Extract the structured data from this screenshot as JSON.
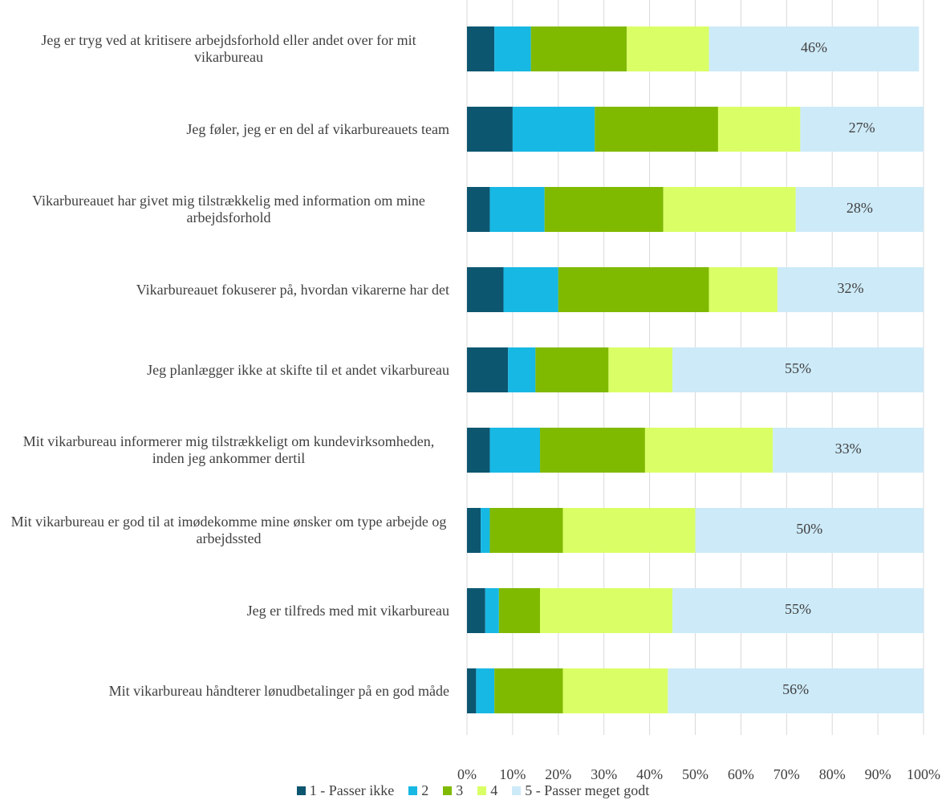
{
  "chart_data": {
    "type": "stacked-barh",
    "categories": [
      "Jeg er tryg ved at kritisere arbejdsforhold eller andet over for mit vikarbureau",
      "Jeg føler, jeg er en del af vikarbureauets team",
      "Vikarbureauet har givet mig tilstrækkelig med information om mine arbejdsforhold",
      "Vikarbureauet fokuserer på, hvordan vikarerne har det",
      "Jeg planlægger ikke at skifte til et andet vikarbureau",
      "Mit vikarbureau informerer mig tilstrækkeligt om kundevirksomheden, inden jeg ankommer dertil",
      "Mit vikarbureau er god til at imødekomme mine ønsker om type arbejde og arbejdssted",
      "Jeg er tilfreds med mit vikarbureau",
      "Mit vikarbureau håndterer lønudbetalinger på en god måde"
    ],
    "series": [
      {
        "name": "1 - Passer ikke",
        "color": "#0d5670",
        "values": [
          6,
          10,
          5,
          8,
          9,
          5,
          3,
          4,
          2
        ]
      },
      {
        "name": "2",
        "color": "#17b8e3",
        "values": [
          8,
          18,
          12,
          12,
          6,
          11,
          2,
          3,
          4
        ]
      },
      {
        "name": "3",
        "color": "#80ba00",
        "values": [
          21,
          27,
          26,
          33,
          16,
          23,
          16,
          9,
          15
        ]
      },
      {
        "name": "4",
        "color": "#daff66",
        "values": [
          18,
          18,
          29,
          15,
          14,
          28,
          29,
          29,
          23
        ]
      },
      {
        "name": "5 - Passer meget godt",
        "color": "#cdeaf8",
        "values": [
          46,
          27,
          28,
          32,
          55,
          33,
          50,
          55,
          56
        ],
        "value_labels": [
          "46%",
          "27%",
          "28%",
          "32%",
          "55%",
          "33%",
          "50%",
          "55%",
          "56%"
        ]
      }
    ],
    "xlim": [
      0,
      100
    ],
    "xticks": [
      {
        "value": 0,
        "label": "0%"
      },
      {
        "value": 10,
        "label": "10%"
      },
      {
        "value": 20,
        "label": "20%"
      },
      {
        "value": 30,
        "label": "30%"
      },
      {
        "value": 40,
        "label": "40%"
      },
      {
        "value": 50,
        "label": "50%"
      },
      {
        "value": 60,
        "label": "60%"
      },
      {
        "value": 70,
        "label": "70%"
      },
      {
        "value": 80,
        "label": "80%"
      },
      {
        "value": 90,
        "label": "90%"
      },
      {
        "value": 100,
        "label": "100%"
      }
    ],
    "grid": true,
    "legend": "bottom"
  }
}
